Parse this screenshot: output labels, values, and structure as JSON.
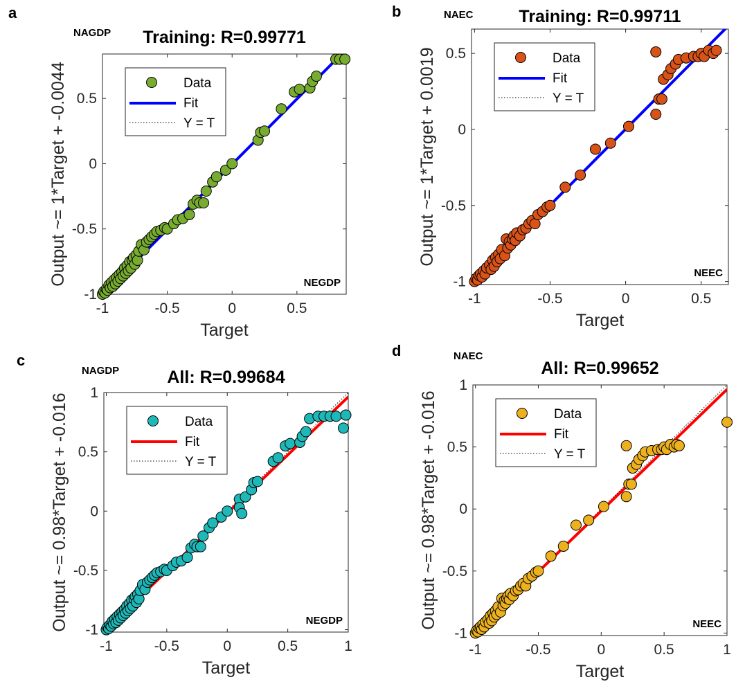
{
  "chart_data": [
    {
      "panel": "a",
      "type": "scatter",
      "title": "Training: R=0.99771",
      "left_label": "NAGDP",
      "right_label": "NEGDP",
      "xlabel": "Target",
      "ylabel": "Output ~= 1*Target + -0.0044",
      "xlim": [
        -1,
        0.88
      ],
      "ylim": [
        -1,
        0.84
      ],
      "xticks": [
        -1,
        -0.5,
        0,
        0.5
      ],
      "yticks": [
        -1,
        -0.5,
        0,
        0.5
      ],
      "fit": {
        "slope": 1,
        "intercept": -0.0044,
        "color": "#0000ff"
      },
      "marker_color": "#77ac30",
      "legend": [
        "Data",
        "Fit",
        "Y = T"
      ],
      "legend_position": "top-left",
      "points": [
        [
          -1,
          -1
        ],
        [
          -0.99,
          -0.98
        ],
        [
          -0.98,
          -0.99
        ],
        [
          -0.97,
          -0.96
        ],
        [
          -0.96,
          -0.97
        ],
        [
          -0.95,
          -0.93
        ],
        [
          -0.94,
          -0.95
        ],
        [
          -0.93,
          -0.91
        ],
        [
          -0.92,
          -0.94
        ],
        [
          -0.91,
          -0.89
        ],
        [
          -0.9,
          -0.92
        ],
        [
          -0.89,
          -0.87
        ],
        [
          -0.88,
          -0.9
        ],
        [
          -0.87,
          -0.85
        ],
        [
          -0.86,
          -0.88
        ],
        [
          -0.85,
          -0.83
        ],
        [
          -0.84,
          -0.86
        ],
        [
          -0.83,
          -0.8
        ],
        [
          -0.82,
          -0.84
        ],
        [
          -0.81,
          -0.78
        ],
        [
          -0.8,
          -0.82
        ],
        [
          -0.79,
          -0.75
        ],
        [
          -0.78,
          -0.8
        ],
        [
          -0.77,
          -0.74
        ],
        [
          -0.76,
          -0.72
        ],
        [
          -0.75,
          -0.77
        ],
        [
          -0.74,
          -0.7
        ],
        [
          -0.73,
          -0.74
        ],
        [
          -0.72,
          -0.67
        ],
        [
          -0.7,
          -0.62
        ],
        [
          -0.68,
          -0.66
        ],
        [
          -0.66,
          -0.6
        ],
        [
          -0.64,
          -0.58
        ],
        [
          -0.62,
          -0.56
        ],
        [
          -0.6,
          -0.54
        ],
        [
          -0.58,
          -0.52
        ],
        [
          -0.55,
          -0.51
        ],
        [
          -0.52,
          -0.49
        ],
        [
          -0.5,
          -0.5
        ],
        [
          -0.45,
          -0.46
        ],
        [
          -0.42,
          -0.43
        ],
        [
          -0.38,
          -0.42
        ],
        [
          -0.33,
          -0.39
        ],
        [
          -0.3,
          -0.31
        ],
        [
          -0.27,
          -0.28
        ],
        [
          -0.25,
          -0.3
        ],
        [
          -0.22,
          -0.3
        ],
        [
          -0.2,
          -0.21
        ],
        [
          -0.15,
          -0.14
        ],
        [
          -0.12,
          -0.1
        ],
        [
          -0.05,
          -0.05
        ],
        [
          0,
          0
        ],
        [
          0.2,
          0.18
        ],
        [
          0.22,
          0.24
        ],
        [
          0.25,
          0.25
        ],
        [
          0.38,
          0.42
        ],
        [
          0.48,
          0.55
        ],
        [
          0.52,
          0.57
        ],
        [
          0.6,
          0.58
        ],
        [
          0.62,
          0.63
        ],
        [
          0.65,
          0.67
        ],
        [
          0.8,
          0.8
        ],
        [
          0.83,
          0.8
        ],
        [
          0.87,
          0.8
        ]
      ]
    },
    {
      "panel": "b",
      "type": "scatter",
      "title": "Training: R=0.99711",
      "left_label": "NAEC",
      "right_label": "NEEC",
      "xlabel": "Target",
      "ylabel": "Output ~= 1*Target + 0.0019",
      "xlim": [
        -1.02,
        0.68
      ],
      "ylim": [
        -1.02,
        0.66
      ],
      "xticks": [
        -1,
        -0.5,
        0,
        0.5
      ],
      "yticks": [
        -1,
        -0.5,
        0,
        0.5
      ],
      "fit": {
        "slope": 1,
        "intercept": 0.0019,
        "color": "#0000ff"
      },
      "marker_color": "#d95319",
      "legend": [
        "Data",
        "Fit",
        "Y = T"
      ],
      "legend_position": "top-left",
      "points": [
        [
          -1,
          -1
        ],
        [
          -0.99,
          -0.98
        ],
        [
          -0.98,
          -0.99
        ],
        [
          -0.97,
          -0.96
        ],
        [
          -0.96,
          -0.95
        ],
        [
          -0.95,
          -0.97
        ],
        [
          -0.94,
          -0.93
        ],
        [
          -0.93,
          -0.95
        ],
        [
          -0.92,
          -0.91
        ],
        [
          -0.9,
          -0.89
        ],
        [
          -0.89,
          -0.92
        ],
        [
          -0.88,
          -0.86
        ],
        [
          -0.87,
          -0.9
        ],
        [
          -0.86,
          -0.84
        ],
        [
          -0.85,
          -0.87
        ],
        [
          -0.84,
          -0.82
        ],
        [
          -0.83,
          -0.85
        ],
        [
          -0.82,
          -0.79
        ],
        [
          -0.8,
          -0.83
        ],
        [
          -0.79,
          -0.72
        ],
        [
          -0.78,
          -0.78
        ],
        [
          -0.77,
          -0.74
        ],
        [
          -0.76,
          -0.76
        ],
        [
          -0.75,
          -0.72
        ],
        [
          -0.74,
          -0.7
        ],
        [
          -0.73,
          -0.73
        ],
        [
          -0.72,
          -0.68
        ],
        [
          -0.7,
          -0.7
        ],
        [
          -0.68,
          -0.66
        ],
        [
          -0.66,
          -0.65
        ],
        [
          -0.64,
          -0.62
        ],
        [
          -0.62,
          -0.6
        ],
        [
          -0.6,
          -0.62
        ],
        [
          -0.58,
          -0.56
        ],
        [
          -0.55,
          -0.54
        ],
        [
          -0.52,
          -0.51
        ],
        [
          -0.5,
          -0.5
        ],
        [
          -0.4,
          -0.38
        ],
        [
          -0.3,
          -0.3
        ],
        [
          -0.2,
          -0.13
        ],
        [
          -0.1,
          -0.09
        ],
        [
          0.02,
          0.02
        ],
        [
          0.2,
          0.1
        ],
        [
          0.2,
          0.51
        ],
        [
          0.22,
          0.2
        ],
        [
          0.24,
          0.2
        ],
        [
          0.25,
          0.33
        ],
        [
          0.28,
          0.36
        ],
        [
          0.3,
          0.4
        ],
        [
          0.33,
          0.43
        ],
        [
          0.35,
          0.46
        ],
        [
          0.4,
          0.47
        ],
        [
          0.45,
          0.48
        ],
        [
          0.48,
          0.48
        ],
        [
          0.5,
          0.5
        ],
        [
          0.52,
          0.48
        ],
        [
          0.55,
          0.52
        ],
        [
          0.58,
          0.5
        ],
        [
          0.6,
          0.52
        ]
      ]
    },
    {
      "panel": "c",
      "type": "scatter",
      "title": "All: R=0.99684",
      "left_label": "NAGDP",
      "right_label": "NEGDP",
      "xlabel": "Target",
      "ylabel": "Output ~= 0.98*Target + -0.016",
      "xlim": [
        -1.02,
        1.0
      ],
      "ylim": [
        -1.02,
        1.0
      ],
      "xticks": [
        -1,
        -0.5,
        0,
        0.5,
        1
      ],
      "yticks": [
        -1,
        -0.5,
        0,
        0.5,
        1
      ],
      "fit": {
        "slope": 0.98,
        "intercept": -0.016,
        "color": "#ff0000"
      },
      "marker_color": "#1fb8b8",
      "legend": [
        "Data",
        "Fit",
        "Y = T"
      ],
      "legend_position": "top-left",
      "points": [
        [
          -1,
          -1
        ],
        [
          -0.99,
          -0.98
        ],
        [
          -0.98,
          -0.99
        ],
        [
          -0.97,
          -0.96
        ],
        [
          -0.96,
          -0.97
        ],
        [
          -0.95,
          -0.93
        ],
        [
          -0.94,
          -0.95
        ],
        [
          -0.93,
          -0.91
        ],
        [
          -0.92,
          -0.94
        ],
        [
          -0.91,
          -0.89
        ],
        [
          -0.9,
          -0.92
        ],
        [
          -0.89,
          -0.87
        ],
        [
          -0.88,
          -0.9
        ],
        [
          -0.87,
          -0.85
        ],
        [
          -0.86,
          -0.88
        ],
        [
          -0.85,
          -0.83
        ],
        [
          -0.84,
          -0.86
        ],
        [
          -0.83,
          -0.8
        ],
        [
          -0.82,
          -0.84
        ],
        [
          -0.81,
          -0.78
        ],
        [
          -0.8,
          -0.82
        ],
        [
          -0.79,
          -0.75
        ],
        [
          -0.78,
          -0.8
        ],
        [
          -0.77,
          -0.74
        ],
        [
          -0.76,
          -0.72
        ],
        [
          -0.75,
          -0.77
        ],
        [
          -0.74,
          -0.7
        ],
        [
          -0.73,
          -0.74
        ],
        [
          -0.72,
          -0.67
        ],
        [
          -0.7,
          -0.62
        ],
        [
          -0.68,
          -0.66
        ],
        [
          -0.66,
          -0.6
        ],
        [
          -0.64,
          -0.58
        ],
        [
          -0.62,
          -0.56
        ],
        [
          -0.6,
          -0.54
        ],
        [
          -0.58,
          -0.52
        ],
        [
          -0.55,
          -0.51
        ],
        [
          -0.52,
          -0.49
        ],
        [
          -0.5,
          -0.5
        ],
        [
          -0.45,
          -0.46
        ],
        [
          -0.42,
          -0.43
        ],
        [
          -0.38,
          -0.42
        ],
        [
          -0.33,
          -0.39
        ],
        [
          -0.3,
          -0.31
        ],
        [
          -0.27,
          -0.28
        ],
        [
          -0.25,
          -0.3
        ],
        [
          -0.22,
          -0.3
        ],
        [
          -0.2,
          -0.21
        ],
        [
          -0.15,
          -0.14
        ],
        [
          -0.12,
          -0.1
        ],
        [
          -0.05,
          -0.05
        ],
        [
          0,
          0
        ],
        [
          0.1,
          0.1
        ],
        [
          0.1,
          0.03
        ],
        [
          0.12,
          -0.02
        ],
        [
          0.15,
          0.12
        ],
        [
          0.2,
          0.18
        ],
        [
          0.22,
          0.24
        ],
        [
          0.25,
          0.25
        ],
        [
          0.38,
          0.42
        ],
        [
          0.42,
          0.45
        ],
        [
          0.48,
          0.55
        ],
        [
          0.52,
          0.57
        ],
        [
          0.6,
          0.58
        ],
        [
          0.62,
          0.63
        ],
        [
          0.65,
          0.67
        ],
        [
          0.68,
          0.78
        ],
        [
          0.75,
          0.8
        ],
        [
          0.8,
          0.8
        ],
        [
          0.85,
          0.8
        ],
        [
          0.9,
          0.8
        ],
        [
          0.96,
          0.7
        ],
        [
          0.98,
          0.81
        ]
      ]
    },
    {
      "panel": "d",
      "type": "scatter",
      "title": "All: R=0.99652",
      "left_label": "NAEC",
      "right_label": "NEEC",
      "xlabel": "Target",
      "ylabel": "Output ~= 0.98*Target + -0.016",
      "xlim": [
        -1.02,
        1.0
      ],
      "ylim": [
        -1.02,
        1.0
      ],
      "xticks": [
        -1,
        -0.5,
        0,
        0.5,
        1
      ],
      "yticks": [
        -1,
        -0.5,
        0,
        0.5,
        1
      ],
      "fit": {
        "slope": 0.98,
        "intercept": -0.016,
        "color": "#ff0000"
      },
      "marker_color": "#edb120",
      "legend": [
        "Data",
        "Fit",
        "Y = T"
      ],
      "legend_position": "top-left",
      "points": [
        [
          -1,
          -1
        ],
        [
          -0.99,
          -0.98
        ],
        [
          -0.98,
          -0.99
        ],
        [
          -0.97,
          -0.96
        ],
        [
          -0.96,
          -0.95
        ],
        [
          -0.95,
          -0.97
        ],
        [
          -0.94,
          -0.93
        ],
        [
          -0.93,
          -0.95
        ],
        [
          -0.92,
          -0.91
        ],
        [
          -0.9,
          -0.89
        ],
        [
          -0.89,
          -0.92
        ],
        [
          -0.88,
          -0.86
        ],
        [
          -0.87,
          -0.9
        ],
        [
          -0.86,
          -0.84
        ],
        [
          -0.85,
          -0.87
        ],
        [
          -0.84,
          -0.82
        ],
        [
          -0.83,
          -0.85
        ],
        [
          -0.82,
          -0.79
        ],
        [
          -0.8,
          -0.83
        ],
        [
          -0.79,
          -0.72
        ],
        [
          -0.78,
          -0.78
        ],
        [
          -0.77,
          -0.74
        ],
        [
          -0.76,
          -0.76
        ],
        [
          -0.75,
          -0.72
        ],
        [
          -0.74,
          -0.7
        ],
        [
          -0.73,
          -0.73
        ],
        [
          -0.72,
          -0.68
        ],
        [
          -0.7,
          -0.7
        ],
        [
          -0.68,
          -0.66
        ],
        [
          -0.66,
          -0.65
        ],
        [
          -0.64,
          -0.62
        ],
        [
          -0.62,
          -0.6
        ],
        [
          -0.6,
          -0.62
        ],
        [
          -0.58,
          -0.56
        ],
        [
          -0.55,
          -0.54
        ],
        [
          -0.52,
          -0.51
        ],
        [
          -0.5,
          -0.5
        ],
        [
          -0.4,
          -0.38
        ],
        [
          -0.3,
          -0.3
        ],
        [
          -0.2,
          -0.13
        ],
        [
          -0.1,
          -0.09
        ],
        [
          0.02,
          0.02
        ],
        [
          0.2,
          0.1
        ],
        [
          0.2,
          0.51
        ],
        [
          0.22,
          0.2
        ],
        [
          0.24,
          0.2
        ],
        [
          0.25,
          0.33
        ],
        [
          0.28,
          0.36
        ],
        [
          0.3,
          0.4
        ],
        [
          0.33,
          0.43
        ],
        [
          0.35,
          0.46
        ],
        [
          0.4,
          0.47
        ],
        [
          0.45,
          0.48
        ],
        [
          0.48,
          0.48
        ],
        [
          0.5,
          0.5
        ],
        [
          0.52,
          0.48
        ],
        [
          0.55,
          0.52
        ],
        [
          0.58,
          0.5
        ],
        [
          0.6,
          0.52
        ],
        [
          0.62,
          0.51
        ],
        [
          1.0,
          0.7
        ]
      ]
    }
  ]
}
